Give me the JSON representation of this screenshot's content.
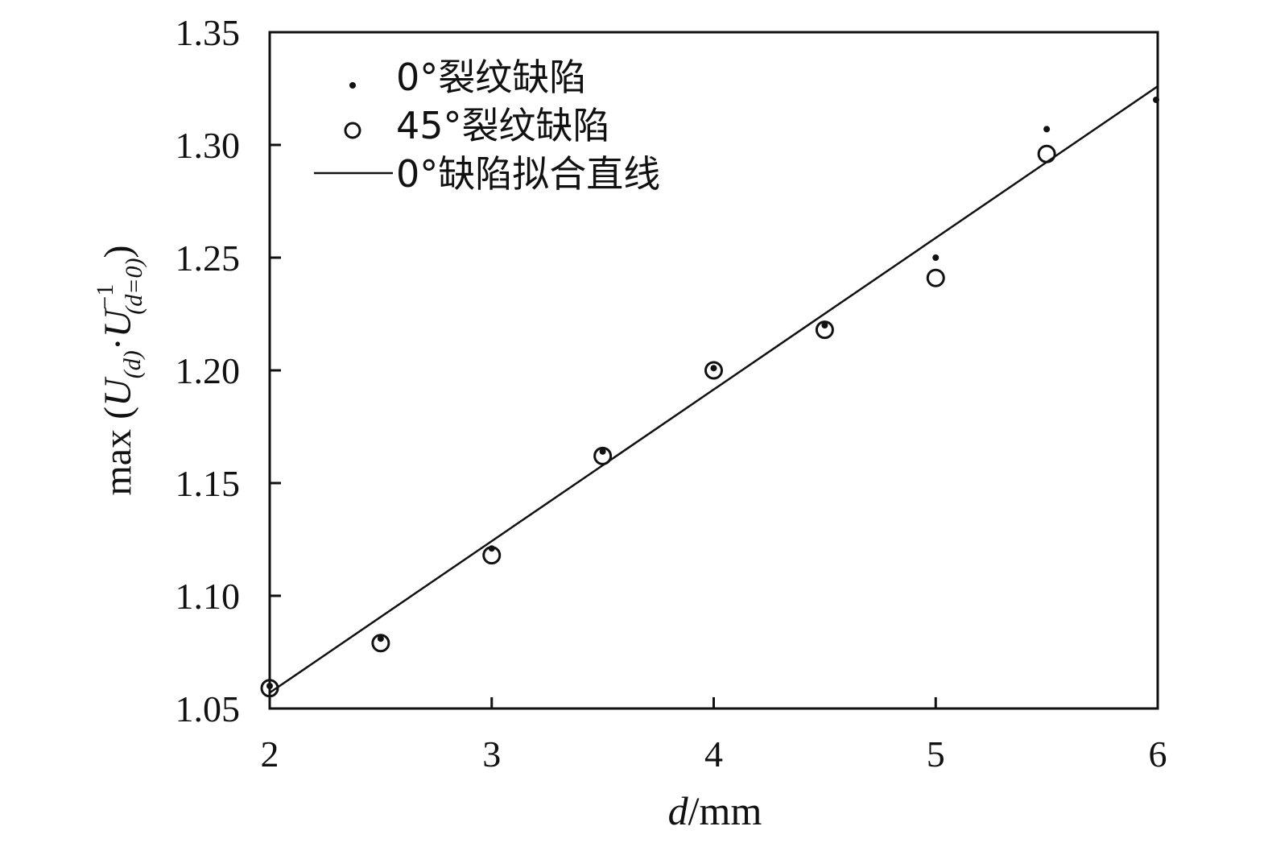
{
  "chart_data": {
    "type": "scatter",
    "title": "",
    "xlabel": {
      "italic": "d",
      "rest": "/mm"
    },
    "ylabel": {
      "prefix": "max (",
      "u1": "U",
      "u1_sub": "(d)",
      "dot": "·",
      "u2": "U",
      "u2_sup": "−1",
      "u2_sub": "(d=0)",
      "suffix": ")"
    },
    "xlim": [
      2,
      6
    ],
    "ylim": [
      1.05,
      1.35
    ],
    "xticks": [
      "2",
      "3",
      "4",
      "5",
      "6"
    ],
    "yticks": [
      "1.05",
      "1.10",
      "1.15",
      "1.20",
      "1.25",
      "1.30",
      "1.35"
    ],
    "grid": false,
    "legend_position": "top-left",
    "series": [
      {
        "name": "0°裂纹缺陷",
        "marker": "dot",
        "x": [
          2,
          2.5,
          3,
          3.5,
          4,
          4.5,
          5,
          5.5,
          6
        ],
        "y": [
          1.06,
          1.081,
          1.121,
          1.164,
          1.201,
          1.22,
          1.25,
          1.307,
          1.32
        ]
      },
      {
        "name": "45°裂纹缺陷",
        "marker": "open-circle",
        "x": [
          2,
          2.5,
          3,
          3.5,
          4,
          4.5,
          5,
          5.5
        ],
        "y": [
          1.059,
          1.079,
          1.118,
          1.162,
          1.2,
          1.218,
          1.241,
          1.296
        ]
      },
      {
        "name": "0°缺陷拟合直线",
        "marker": "line",
        "x": [
          2,
          6
        ],
        "y": [
          1.057,
          1.326
        ]
      }
    ],
    "colors": {
      "ink": "#111111"
    }
  }
}
